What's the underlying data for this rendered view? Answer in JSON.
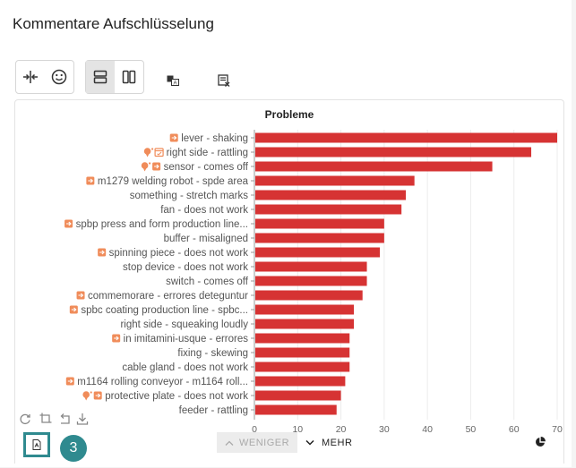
{
  "page": {
    "title": "Kommentare Aufschlüsselung"
  },
  "toolbar": {
    "items": [
      {
        "icon": "split-columns-icon",
        "active": false
      },
      {
        "icon": "smiley-icon",
        "active": false
      },
      {
        "icon": "rows-layout-icon",
        "active": true
      },
      {
        "icon": "columns-layout-icon",
        "active": false
      },
      {
        "icon": "translate-icon",
        "active": false
      },
      {
        "icon": "clear-filter-icon",
        "active": false
      }
    ]
  },
  "chart_data": {
    "type": "bar",
    "orientation": "horizontal",
    "title": "Probleme",
    "xlim": [
      0,
      70
    ],
    "xticks": [
      0,
      10,
      20,
      30,
      40,
      50,
      60,
      70
    ],
    "bar_color": "#d63333",
    "categories": [
      {
        "label": "lever - shaking",
        "value": 70,
        "icons": [
          "arrow-badge-icon"
        ]
      },
      {
        "label": "right side - rattling",
        "value": 64,
        "icons": [
          "bulb-icon",
          "calendar-icon"
        ]
      },
      {
        "label": "sensor - comes off",
        "value": 55,
        "icons": [
          "bulb-icon",
          "arrow-badge-icon"
        ]
      },
      {
        "label": "m1279 welding robot - spde area",
        "value": 37,
        "icons": [
          "arrow-badge-icon"
        ]
      },
      {
        "label": "something - stretch marks",
        "value": 35,
        "icons": []
      },
      {
        "label": "fan - does not work",
        "value": 34,
        "icons": []
      },
      {
        "label": "spbp press and form production line...",
        "value": 30,
        "icons": [
          "arrow-badge-icon"
        ]
      },
      {
        "label": "buffer - misaligned",
        "value": 30,
        "icons": []
      },
      {
        "label": "spinning piece - does not work",
        "value": 29,
        "icons": [
          "arrow-badge-icon"
        ]
      },
      {
        "label": "stop device - does not work",
        "value": 26,
        "icons": []
      },
      {
        "label": "switch - comes off",
        "value": 26,
        "icons": []
      },
      {
        "label": "commemorare - errores deteguntur",
        "value": 25,
        "icons": [
          "arrow-badge-icon"
        ]
      },
      {
        "label": "spbc coating production line - spbc...",
        "value": 23,
        "icons": [
          "arrow-badge-icon"
        ]
      },
      {
        "label": "right side - squeaking loudly",
        "value": 23,
        "icons": []
      },
      {
        "label": "in imitamini-usque - errores",
        "value": 22,
        "icons": [
          "arrow-badge-icon"
        ]
      },
      {
        "label": "fixing - skewing",
        "value": 22,
        "icons": []
      },
      {
        "label": "cable gland - does not work",
        "value": 22,
        "icons": []
      },
      {
        "label": "m1164 rolling conveyor - m1164 roll...",
        "value": 21,
        "icons": [
          "arrow-badge-icon"
        ]
      },
      {
        "label": "protective plate - does not work",
        "value": 20,
        "icons": [
          "bulb-icon",
          "arrow-badge-icon"
        ]
      },
      {
        "label": "feeder - rattling",
        "value": 19,
        "icons": []
      }
    ]
  },
  "chart_tools": [
    "reset-icon",
    "crop-icon",
    "undo-icon",
    "download-icon"
  ],
  "footer": {
    "less_label": "WENIGER",
    "more_label": "MEHR",
    "step_badge": "3",
    "export_icon": "pdf-export-icon",
    "chart_type_icon": "pie-chart-icon"
  },
  "colors": {
    "accent": "#2f8a8f",
    "bar": "#d63333",
    "icon_orange": "#f08c5a"
  }
}
